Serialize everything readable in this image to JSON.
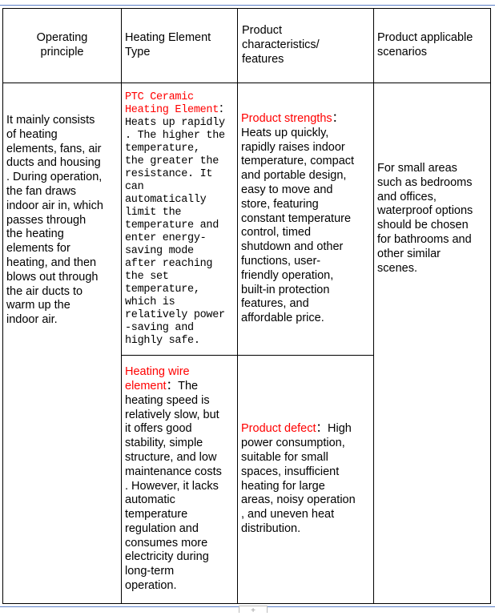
{
  "headers": [
    "Operating\nprinciple",
    "Heating Element\nType",
    "Product\ncharacteristics/\nfeatures",
    "Product applicable\n scenarios"
  ],
  "row1": {
    "principle": "It mainly consists\nof heating\nelements, fans, air\nducts and housing\n. During operation,\n the fan draws\nindoor air in, which\n passes through\nthe heating\nelements for\nheating, and then\nblows out through\nthe air ducts to\nwarm up the\nindoor air.",
    "element_label": "PTC Ceramic\nHeating Element",
    "element_text": "：\nHeats up rapidly\n. The higher the\n temperature,\nthe greater the\nresistance. It\ncan\nautomatically\nlimit the\ntemperature and\nenter energy-\nsaving mode\nafter reaching\nthe set\ntemperature,\nwhich is\nrelatively power\n-saving and\nhighly safe.",
    "features_label": "Product strengths",
    "features_text": "：\nHeats up quickly,\nrapidly raises indoor\ntemperature, compact\n and portable design,\neasy to move and\nstore, featuring\nconstant temperature\ncontrol, timed\nshutdown and other\nfunctions, user-\nfriendly operation,\nbuilt-in protection\nfeatures, and\naffordable price.",
    "scenarios": "For small areas\nsuch as bedrooms\n and offices,\nwaterproof options\n should be chosen\nfor bathrooms and\nother similar\nscenes."
  },
  "row2": {
    "element_label": "Heating wire\nelement",
    "element_text": "：The\nheating speed is\nrelatively slow, but\n it offers good\nstability, simple\nstructure, and low\nmaintenance costs\n. However, it lacks\nautomatic\ntemperature\nregulation and\nconsumes more\nelectricity during\nlong-term\noperation.",
    "features_label": "Product defect",
    "features_text": "：High\n power consumption,\nsuitable for small\nspaces, insufficient\nheating for large\nareas, noisy operation\n, and uneven heat\ndistribution."
  },
  "colors": {
    "accent": "#ff0000",
    "rule": "#5b7fc7"
  }
}
